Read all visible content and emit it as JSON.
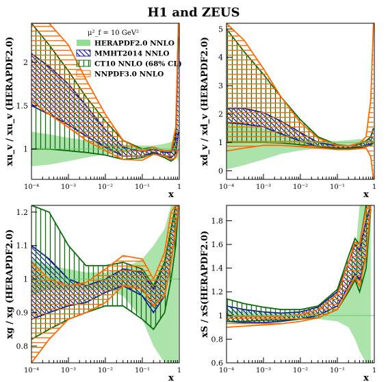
{
  "figure": {
    "title": "H1 and ZEUS"
  },
  "legend": {
    "scale": "μ²_f = 10 GeV²",
    "entries": [
      {
        "label": "HERAPDF2.0 NNLO",
        "color": "#66cc66",
        "style": "fill"
      },
      {
        "label": "MMHT2014 NNLO",
        "color": "#1a1aa6",
        "style": "hatch-diag"
      },
      {
        "label": "CT10 NNLO (68% CL)",
        "color": "#0b6b0b",
        "style": "hatch-vert"
      },
      {
        "label": "NNPDF3.0 NNLO",
        "color": "#ff6a00",
        "style": "hatch-horiz"
      }
    ]
  },
  "chart_data": [
    {
      "type": "area",
      "ylabel": "xu_v / xu_v (HERAPDF2.0)",
      "xlabel": "x",
      "xlog": true,
      "xlim": [
        0.0001,
        1
      ],
      "ylim": [
        0.65,
        2.45
      ],
      "yticks": [
        1,
        1.5,
        2
      ],
      "ytick_labels": [
        "1",
        "1.5",
        "2"
      ],
      "xticks": [
        0.0001,
        0.001,
        0.01,
        0.1,
        1
      ],
      "xtick_labels": [
        "10⁻⁴",
        "10⁻³",
        "10⁻²",
        "10⁻¹",
        "1"
      ],
      "x": [
        0.0001,
        0.0003,
        0.001,
        0.003,
        0.01,
        0.03,
        0.1,
        0.2,
        0.4,
        0.6,
        0.8,
        0.95
      ],
      "series": [
        {
          "name": "HERAPDF2.0 NNLO",
          "lower": [
            0.8,
            0.82,
            0.86,
            0.9,
            0.94,
            0.96,
            0.98,
            0.98,
            0.97,
            0.96,
            0.94,
            0.85
          ],
          "upper": [
            1.2,
            1.17,
            1.13,
            1.1,
            1.07,
            1.05,
            1.04,
            1.04,
            1.06,
            1.08,
            1.12,
            1.3
          ]
        },
        {
          "name": "MMHT2014 NNLO",
          "lower": [
            1.5,
            1.4,
            1.28,
            1.15,
            1.02,
            0.92,
            0.92,
            0.96,
            0.92,
            0.9,
            0.95,
            1.2
          ],
          "upper": [
            2.1,
            1.95,
            1.75,
            1.5,
            1.22,
            1.02,
            0.97,
            1.0,
            0.96,
            0.96,
            1.1,
            2.3
          ]
        },
        {
          "name": "CT10 NNLO (68% CL)",
          "lower": [
            1.0,
            1.0,
            0.98,
            0.96,
            0.93,
            0.88,
            0.9,
            0.95,
            0.9,
            0.86,
            0.9,
            1.0
          ],
          "upper": [
            2.45,
            2.2,
            1.9,
            1.6,
            1.32,
            1.1,
            1.0,
            1.02,
            0.98,
            0.98,
            1.2,
            2.45
          ]
        },
        {
          "name": "NNPDF3.0 NNLO",
          "lower": [
            1.55,
            1.4,
            1.25,
            1.1,
            0.98,
            0.88,
            0.87,
            0.94,
            0.92,
            0.88,
            0.9,
            1.0
          ],
          "upper": [
            2.45,
            2.45,
            2.2,
            1.8,
            1.4,
            1.1,
            0.98,
            1.02,
            0.98,
            0.98,
            1.25,
            2.45
          ]
        }
      ]
    },
    {
      "type": "area",
      "ylabel": "xd_v / xd_v (HERAPDF2.0)",
      "xlabel": "x",
      "xlog": true,
      "xlim": [
        0.0001,
        1
      ],
      "ylim": [
        -0.3,
        5.2
      ],
      "yticks": [
        0,
        1,
        2,
        3,
        4,
        5
      ],
      "ytick_labels": [
        "0",
        "1",
        "2",
        "3",
        "4",
        "5"
      ],
      "xticks": [
        0.0001,
        0.001,
        0.01,
        0.1,
        1
      ],
      "xtick_labels": [
        "10⁻⁴",
        "10⁻³",
        "10⁻²",
        "10⁻¹",
        "1"
      ],
      "x": [
        0.0001,
        0.0003,
        0.001,
        0.003,
        0.01,
        0.03,
        0.1,
        0.2,
        0.4,
        0.6,
        0.8,
        0.95
      ],
      "series": [
        {
          "name": "HERAPDF2.0 NNLO",
          "lower": [
            0.05,
            0.2,
            0.4,
            0.6,
            0.72,
            0.78,
            0.8,
            0.82,
            0.84,
            0.85,
            0.87,
            0.9
          ],
          "upper": [
            1.75,
            1.65,
            1.5,
            1.35,
            1.15,
            1.05,
            1.05,
            1.08,
            1.12,
            1.1,
            1.1,
            1.12
          ]
        },
        {
          "name": "MMHT2014 NNLO",
          "lower": [
            1.7,
            1.65,
            1.55,
            1.3,
            1.05,
            0.85,
            0.8,
            0.8,
            0.85,
            0.9,
            0.95,
            1.0
          ],
          "upper": [
            2.2,
            2.2,
            2.05,
            1.75,
            1.35,
            1.0,
            0.88,
            0.88,
            0.95,
            1.05,
            1.2,
            1.5
          ]
        },
        {
          "name": "CT10 NNLO (68% CL)",
          "lower": [
            1.0,
            1.0,
            1.0,
            0.98,
            0.92,
            0.85,
            0.78,
            0.78,
            0.82,
            0.85,
            0.9,
            1.0
          ],
          "upper": [
            5.0,
            4.2,
            3.4,
            2.6,
            1.8,
            1.2,
            0.92,
            0.88,
            0.95,
            1.05,
            1.2,
            1.5
          ]
        },
        {
          "name": "NNPDF3.0 NNLO",
          "lower": [
            0.7,
            0.8,
            0.9,
            0.9,
            0.85,
            0.8,
            0.75,
            0.75,
            0.78,
            0.8,
            0.5,
            -0.3
          ],
          "upper": [
            5.2,
            4.6,
            3.6,
            2.6,
            1.7,
            1.15,
            0.9,
            0.88,
            0.98,
            1.2,
            2.5,
            5.2
          ]
        }
      ]
    },
    {
      "type": "area",
      "ylabel": "xg / xg (HERAPDF2.0)",
      "xlabel": "x",
      "xlog": true,
      "xlim": [
        0.0001,
        1
      ],
      "ylim": [
        0.75,
        1.22
      ],
      "yticks": [
        0.8,
        0.9,
        1,
        1.1,
        1.2
      ],
      "ytick_labels": [
        "0.8",
        "0.9",
        "1",
        "1.1",
        "1.2"
      ],
      "xticks": [
        0.0001,
        0.001,
        0.01,
        0.1,
        1
      ],
      "xtick_labels": [
        "10⁻⁴",
        "10⁻³",
        "10⁻²",
        "10⁻¹",
        "1"
      ],
      "x": [
        0.0001,
        0.0003,
        0.001,
        0.003,
        0.01,
        0.03,
        0.1,
        0.2,
        0.4,
        0.6,
        0.8,
        0.95
      ],
      "series": [
        {
          "name": "HERAPDF2.0 NNLO",
          "lower": [
            0.95,
            0.97,
            0.97,
            0.97,
            0.97,
            0.95,
            0.88,
            0.8,
            0.75,
            0.75,
            0.75,
            0.75
          ],
          "upper": [
            1.06,
            1.04,
            1.03,
            1.02,
            1.02,
            1.03,
            1.06,
            1.1,
            1.15,
            1.22,
            1.22,
            1.22
          ]
        },
        {
          "name": "MMHT2014 NNLO",
          "lower": [
            0.88,
            0.9,
            0.92,
            0.93,
            0.96,
            0.98,
            0.95,
            0.9,
            0.95,
            1.05,
            1.15,
            1.22
          ],
          "upper": [
            1.1,
            1.06,
            1.0,
            0.98,
            1.0,
            1.03,
            1.02,
            0.97,
            1.05,
            1.15,
            1.22,
            1.22
          ]
        },
        {
          "name": "CT10 NNLO (68% CL)",
          "lower": [
            0.82,
            0.85,
            0.88,
            0.9,
            0.92,
            0.92,
            0.88,
            0.85,
            0.9,
            1.0,
            1.1,
            1.22
          ],
          "upper": [
            1.22,
            1.2,
            1.1,
            1.04,
            1.04,
            1.05,
            1.03,
            0.98,
            1.05,
            1.15,
            1.22,
            1.22
          ]
        },
        {
          "name": "NNPDF3.0 NNLO",
          "lower": [
            0.75,
            0.82,
            0.88,
            0.9,
            0.93,
            0.98,
            0.97,
            0.92,
            0.95,
            1.05,
            1.15,
            1.22
          ],
          "upper": [
            1.05,
            1.0,
            0.98,
            0.99,
            1.03,
            1.07,
            1.06,
            1.0,
            1.08,
            1.2,
            1.22,
            1.22
          ]
        }
      ]
    },
    {
      "type": "area",
      "ylabel": "xS / xS(HERAPDF2.0)",
      "xlabel": "x",
      "xlog": true,
      "xlim": [
        0.0001,
        1
      ],
      "ylim": [
        0.6,
        1.93
      ],
      "yticks": [
        0.6,
        0.8,
        1,
        1.2,
        1.4,
        1.6,
        1.8
      ],
      "ytick_labels": [
        "0.6",
        "0.8",
        "1",
        "1.2",
        "1.4",
        "1.6",
        "1.8"
      ],
      "xticks": [
        0.0001,
        0.001,
        0.01,
        0.1,
        1
      ],
      "xtick_labels": [
        "10⁻⁴",
        "10⁻³",
        "10⁻²",
        "10⁻¹",
        "1"
      ],
      "x": [
        0.0001,
        0.0003,
        0.001,
        0.003,
        0.01,
        0.03,
        0.1,
        0.2,
        0.3,
        0.4,
        0.6,
        0.8
      ],
      "series": [
        {
          "name": "HERAPDF2.0 NNLO",
          "lower": [
            0.97,
            0.98,
            0.98,
            0.98,
            0.98,
            0.97,
            0.95,
            0.9,
            0.8,
            0.7,
            0.6,
            0.6
          ],
          "upper": [
            1.04,
            1.03,
            1.02,
            1.02,
            1.02,
            1.03,
            1.06,
            1.2,
            1.5,
            1.93,
            1.93,
            1.93
          ]
        },
        {
          "name": "MMHT2014 NNLO",
          "lower": [
            0.95,
            0.94,
            0.94,
            0.95,
            0.97,
            1.0,
            1.08,
            1.25,
            1.35,
            1.3,
            1.5,
            1.93
          ],
          "upper": [
            1.08,
            1.05,
            1.03,
            1.02,
            1.03,
            1.07,
            1.2,
            1.45,
            1.6,
            1.55,
            1.8,
            1.93
          ]
        },
        {
          "name": "CT10 NNLO (68% CL)",
          "lower": [
            0.95,
            0.95,
            0.96,
            0.96,
            0.97,
            0.98,
            1.05,
            1.2,
            1.3,
            1.2,
            1.4,
            1.9
          ],
          "upper": [
            1.14,
            1.1,
            1.07,
            1.05,
            1.05,
            1.08,
            1.22,
            1.5,
            1.65,
            1.6,
            1.93,
            1.93
          ]
        },
        {
          "name": "NNPDF3.0 NNLO",
          "lower": [
            0.9,
            0.91,
            0.92,
            0.93,
            0.95,
            0.98,
            1.05,
            1.22,
            1.32,
            1.25,
            1.5,
            1.93
          ],
          "upper": [
            1.0,
            0.99,
            0.99,
            0.99,
            1.01,
            1.05,
            1.18,
            1.45,
            1.62,
            1.6,
            1.9,
            1.93
          ]
        }
      ]
    }
  ]
}
